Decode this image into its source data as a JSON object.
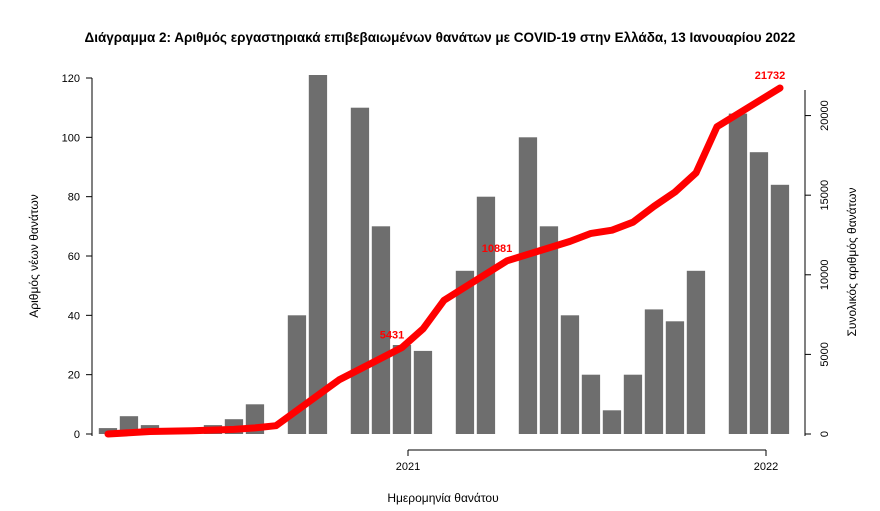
{
  "chart_data": {
    "type": "bar",
    "title": "Διάγραμμα 2: Αριθμός εργαστηριακά επιβεβαιωμένων θανάτων με COVID-19 στην Ελλάδα, 13 Ιανουαρίου 2022",
    "xlabel": "Ημερομηνία θανάτου",
    "ylabel": "Αριθμός νέων θανάτων",
    "y2label": "Συνολικός αριθμός θανάτων",
    "x_ticks": [
      "2021",
      "2022"
    ],
    "y_ticks": [
      0,
      20,
      40,
      60,
      80,
      100,
      120
    ],
    "y2_ticks": [
      0,
      5000,
      10000,
      15000,
      20000
    ],
    "ylim": [
      0,
      120
    ],
    "y2lim": [
      0,
      21732
    ],
    "bar_color": "#6e6e6e",
    "line_color": "#ff0000",
    "series": [
      {
        "name": "Αριθμός νέων θανάτων",
        "kind": "bar",
        "x": [
          "2020-03",
          "2020-04",
          "2020-05",
          "2020-06",
          "2020-07",
          "2020-08",
          "2020-09",
          "2020-10",
          "2020-11a",
          "2020-11b",
          "2020-12a",
          "2020-12b",
          "2021-01",
          "2021-02",
          "2021-03a",
          "2021-03b",
          "2021-04a",
          "2021-04b",
          "2021-05",
          "2021-06",
          "2021-07",
          "2021-08",
          "2021-09",
          "2021-10",
          "2021-11",
          "2021-12a",
          "2021-12b",
          "2022-01"
        ],
        "values": [
          2,
          6,
          3,
          1,
          1,
          3,
          5,
          10,
          40,
          121,
          110,
          70,
          30,
          28,
          55,
          80,
          100,
          70,
          40,
          20,
          8,
          20,
          42,
          38,
          55,
          108,
          95,
          84
        ]
      },
      {
        "name": "Συνολικός αριθμός θανάτων",
        "kind": "line",
        "x": [
          "2020-03",
          "2020-05",
          "2020-07",
          "2020-09",
          "2020-10",
          "2020-11",
          "2020-12",
          "2021-01",
          "2021-02",
          "2021-03",
          "2021-04",
          "2021-05",
          "2021-06",
          "2021-07",
          "2021-08",
          "2021-09",
          "2021-10",
          "2021-11",
          "2021-12",
          "2022-01"
        ],
        "values": [
          0,
          160,
          200,
          290,
          380,
          520,
          3400,
          5431,
          6600,
          8400,
          10881,
          12100,
          12600,
          12800,
          13300,
          14300,
          15200,
          16400,
          19300,
          21732
        ]
      }
    ],
    "annotations": [
      {
        "label": "5431",
        "x": "2021-01",
        "value": 5431
      },
      {
        "label": "10881",
        "x": "2021-04",
        "value": 10881
      },
      {
        "label": "21732",
        "x": "2022-01",
        "value": 21732
      }
    ],
    "grid": false,
    "legend": "none"
  }
}
